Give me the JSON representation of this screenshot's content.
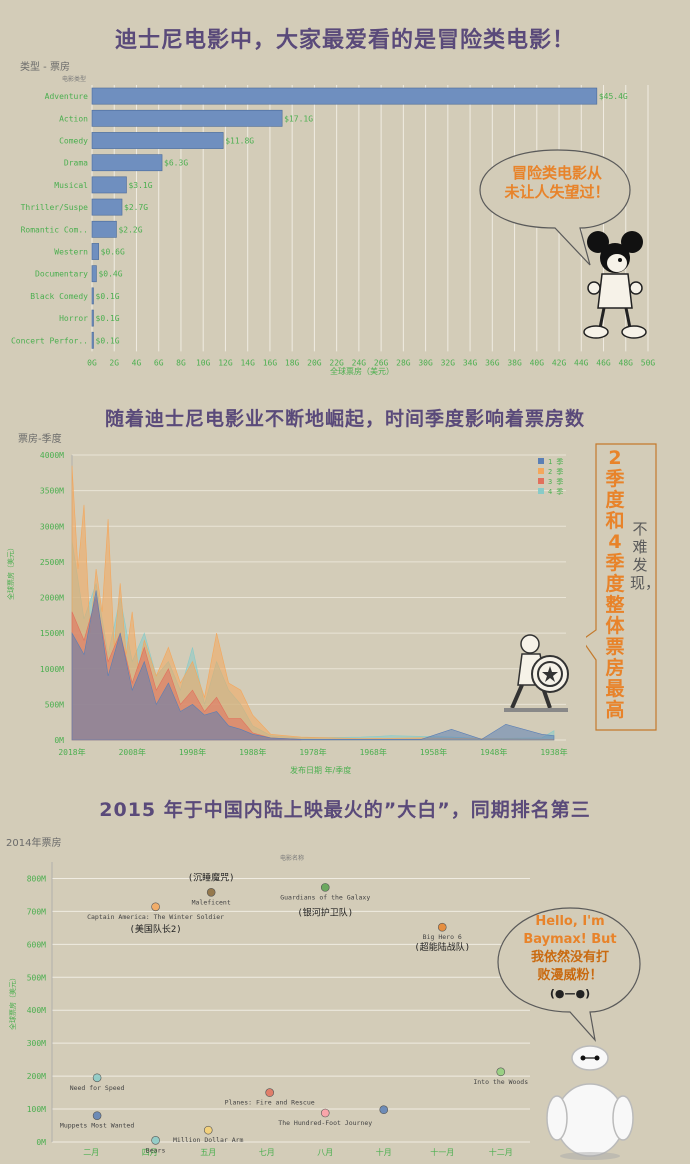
{
  "headline1": "迪士尼电影中，大家最爱看的是冒险类电影！",
  "headline2": "随着迪士尼电影业不断地崛起，时间季度影响着票房数",
  "headline3": "2015 年于中国内陆上映最火的”大白”，同期排名第三",
  "chart1_header": "类型 - 票房",
  "chart1_subheader": "电影类型",
  "chart1_xlabel": "全球票房（美元）",
  "chart2_header": "票房-季度",
  "chart2_xlabel": "发布日期 年/季度",
  "chart2_ylabel": "全球票房（美元）",
  "chart3_header": "2014年票房",
  "chart3_subheader": "电影名称",
  "chart3_ylabel": "全球票房（美元）",
  "callout1": [
    "冒险类电影从",
    "未让人失望过！"
  ],
  "callout2_a": "2季度和4季度整体票房最高",
  "callout2_b": "不难发现，",
  "callout3": [
    "Hello, I'm",
    "Baymax! But",
    "我依然没有打",
    "败漫威粉！",
    "(●—●)"
  ],
  "colors": {
    "bar": "#6f8fbf",
    "q1": "#5b7fb5",
    "q2": "#f4a75c",
    "q3": "#e2705c",
    "q4": "#88cbc8",
    "orange": "#e8832a",
    "axis": "#4caf50"
  },
  "chart_data": [
    {
      "type": "bar",
      "orientation": "horizontal",
      "categories": [
        "Adventure",
        "Action",
        "Comedy",
        "Drama",
        "Musical",
        "Thriller/Suspe",
        "Romantic Com..",
        "Western",
        "Documentary",
        "Black Comedy",
        "Horror",
        "Concert Perfor.."
      ],
      "values": [
        45.4,
        17.1,
        11.8,
        6.3,
        3.1,
        2.7,
        2.2,
        0.6,
        0.4,
        0.1,
        0.1,
        0.1
      ],
      "value_labels": [
        "$45.4G",
        "$17.1G",
        "$11.8G",
        "$6.3G",
        "$3.1G",
        "$2.7G",
        "$2.2G",
        "$0.6G",
        "$0.4G",
        "$0.1G",
        "$0.1G",
        "$0.1G"
      ],
      "xticks": [
        "0G",
        "2G",
        "4G",
        "6G",
        "8G",
        "10G",
        "12G",
        "14G",
        "16G",
        "18G",
        "20G",
        "22G",
        "24G",
        "26G",
        "28G",
        "30G",
        "32G",
        "34G",
        "36G",
        "38G",
        "40G",
        "42G",
        "44G",
        "46G",
        "48G",
        "50G"
      ],
      "xlim": [
        0,
        50
      ]
    },
    {
      "type": "area",
      "x_direction": "descending",
      "xlim": [
        2018,
        1936
      ],
      "ylim": [
        0,
        4000
      ],
      "yticks": [
        "0M",
        "500M",
        "1000M",
        "1500M",
        "2000M",
        "2500M",
        "3000M",
        "3500M",
        "4000M"
      ],
      "xticks": [
        {
          "v": 2018,
          "label": "2018年"
        },
        {
          "v": 2008,
          "label": "2008年"
        },
        {
          "v": 1998,
          "label": "1998年"
        },
        {
          "v": 1988,
          "label": "1988年"
        },
        {
          "v": 1978,
          "label": "1978年"
        },
        {
          "v": 1968,
          "label": "1968年"
        },
        {
          "v": 1958,
          "label": "1958年"
        },
        {
          "v": 1948,
          "label": "1948年"
        },
        {
          "v": 1938,
          "label": "1938年"
        }
      ],
      "legend": [
        "1 季",
        "2 季",
        "3 季",
        "4 季"
      ],
      "series": [
        {
          "name": "1 季",
          "points": [
            [
              2018,
              1500
            ],
            [
              2016,
              1200
            ],
            [
              2014,
              2100
            ],
            [
              2012,
              900
            ],
            [
              2010,
              1500
            ],
            [
              2008,
              700
            ],
            [
              2006,
              1100
            ],
            [
              2004,
              500
            ],
            [
              2002,
              800
            ],
            [
              2000,
              400
            ],
            [
              1998,
              500
            ],
            [
              1996,
              350
            ],
            [
              1994,
              400
            ],
            [
              1992,
              200
            ],
            [
              1990,
              150
            ],
            [
              1988,
              80
            ],
            [
              1985,
              30
            ],
            [
              1980,
              10
            ],
            [
              1960,
              10
            ],
            [
              1955,
              150
            ],
            [
              1950,
              10
            ],
            [
              1946,
              220
            ],
            [
              1940,
              80
            ],
            [
              1938,
              60
            ]
          ]
        },
        {
          "name": "2 季",
          "points": [
            [
              2018,
              3850
            ],
            [
              2017,
              2400
            ],
            [
              2016,
              3300
            ],
            [
              2015,
              1500
            ],
            [
              2014,
              2400
            ],
            [
              2013,
              1800
            ],
            [
              2012,
              3100
            ],
            [
              2011,
              1300
            ],
            [
              2010,
              2200
            ],
            [
              2009,
              1200
            ],
            [
              2008,
              1800
            ],
            [
              2007,
              1000
            ],
            [
              2006,
              1400
            ],
            [
              2004,
              900
            ],
            [
              2002,
              1300
            ],
            [
              2000,
              800
            ],
            [
              1998,
              1100
            ],
            [
              1996,
              600
            ],
            [
              1994,
              1500
            ],
            [
              1992,
              800
            ],
            [
              1990,
              700
            ],
            [
              1988,
              350
            ],
            [
              1985,
              80
            ],
            [
              1980,
              40
            ],
            [
              1970,
              20
            ],
            [
              1960,
              30
            ],
            [
              1950,
              20
            ],
            [
              1938,
              10
            ]
          ]
        },
        {
          "name": "3 季",
          "points": [
            [
              2018,
              1800
            ],
            [
              2016,
              1400
            ],
            [
              2014,
              2000
            ],
            [
              2012,
              1100
            ],
            [
              2010,
              1500
            ],
            [
              2008,
              800
            ],
            [
              2006,
              1300
            ],
            [
              2004,
              700
            ],
            [
              2002,
              1000
            ],
            [
              2000,
              500
            ],
            [
              1998,
              700
            ],
            [
              1996,
              400
            ],
            [
              1994,
              600
            ],
            [
              1992,
              300
            ],
            [
              1990,
              300
            ],
            [
              1988,
              100
            ],
            [
              1985,
              30
            ],
            [
              1980,
              10
            ]
          ]
        },
        {
          "name": "4 季",
          "points": [
            [
              2018,
              2800
            ],
            [
              2016,
              1700
            ],
            [
              2014,
              2200
            ],
            [
              2012,
              1200
            ],
            [
              2010,
              2000
            ],
            [
              2008,
              1100
            ],
            [
              2006,
              1500
            ],
            [
              2004,
              900
            ],
            [
              2002,
              1100
            ],
            [
              2000,
              700
            ],
            [
              1998,
              1300
            ],
            [
              1996,
              500
            ],
            [
              1994,
              1100
            ],
            [
              1992,
              700
            ],
            [
              1990,
              500
            ],
            [
              1988,
              200
            ],
            [
              1985,
              60
            ],
            [
              1980,
              30
            ],
            [
              1970,
              40
            ],
            [
              1965,
              60
            ],
            [
              1955,
              40
            ],
            [
              1950,
              20
            ],
            [
              1940,
              30
            ],
            [
              1938,
              130
            ]
          ]
        }
      ]
    },
    {
      "type": "scatter",
      "ylim": [
        0,
        850
      ],
      "yticks": [
        "0M",
        "100M",
        "200M",
        "300M",
        "400M",
        "500M",
        "600M",
        "700M",
        "800M"
      ],
      "xticks": [
        "二月",
        "四月",
        "五月",
        "七月",
        "八月",
        "十月",
        "十一月",
        "十二月"
      ],
      "points": [
        {
          "label": "Need for Speed",
          "x": 0.6,
          "y": 195,
          "color": "#88cbc8"
        },
        {
          "label": "Muppets Most Wanted",
          "x": 0.6,
          "y": 80,
          "color": "#5b7fb5"
        },
        {
          "label": "Bears",
          "x": 1.6,
          "y": 5,
          "color": "#88cbc8"
        },
        {
          "label": "Captain America: The Winter Soldier",
          "x": 1.6,
          "y": 714,
          "color": "#f4a75c",
          "cn": "(美国队长2)"
        },
        {
          "label": "Maleficent",
          "x": 2.55,
          "y": 758,
          "color": "#8a6a3a",
          "cn": "(沉睡魔咒)"
        },
        {
          "label": "Million Dollar Arm",
          "x": 2.5,
          "y": 36,
          "color": "#f7d070"
        },
        {
          "label": "Planes: Fire and Rescue",
          "x": 3.55,
          "y": 150,
          "color": "#e2705c"
        },
        {
          "label": "Guardians of the Galaxy",
          "x": 4.5,
          "y": 773,
          "color": "#59a14f",
          "cn": "(银河护卫队)"
        },
        {
          "label": "The Hundred-Foot Journey",
          "x": 4.5,
          "y": 88,
          "color": "#ff9da7"
        },
        {
          "label": "",
          "x": 5.5,
          "y": 98,
          "color": "#5b7fb5"
        },
        {
          "label": "Big Hero 6",
          "x": 6.5,
          "y": 652,
          "color": "#e8832a",
          "cn": "(超能陆战队)"
        },
        {
          "label": "Into the Woods",
          "x": 7.5,
          "y": 213,
          "color": "#8fd07a"
        }
      ]
    }
  ]
}
